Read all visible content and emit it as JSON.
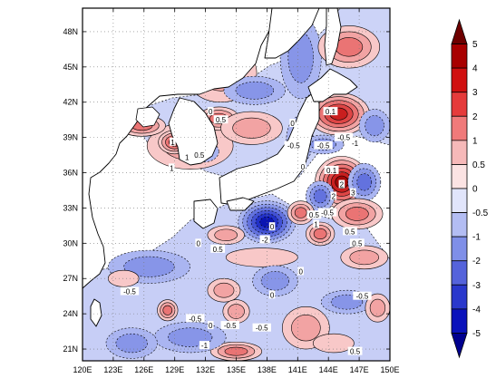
{
  "map": {
    "lon_labels": [
      "120E",
      "123E",
      "126E",
      "129E",
      "132E",
      "135E",
      "138E",
      "141E",
      "144E",
      "147E",
      "150E"
    ],
    "lat_labels": [
      "21N",
      "24N",
      "27N",
      "30N",
      "33N",
      "36N",
      "39N",
      "42N",
      "45N",
      "48N"
    ],
    "lon_range": [
      120,
      150
    ],
    "lat_range": [
      20,
      50
    ],
    "contour_labels": [
      {
        "text": "0",
        "lon": 132.5,
        "lat": 41.2
      },
      {
        "text": "0.5",
        "lon": 133.5,
        "lat": 40.5
      },
      {
        "text": "1",
        "lon": 128.8,
        "lat": 38.6
      },
      {
        "text": "0.5",
        "lon": 131.4,
        "lat": 37.5
      },
      {
        "text": "1",
        "lon": 130.2,
        "lat": 37.3
      },
      {
        "text": "1",
        "lon": 128.7,
        "lat": 36.4
      },
      {
        "text": "0",
        "lon": 140.5,
        "lat": 40.2
      },
      {
        "text": "-0.5",
        "lon": 140.6,
        "lat": 38.3
      },
      {
        "text": "0",
        "lon": 141.5,
        "lat": 36.5
      },
      {
        "text": "-0.5",
        "lon": 143.5,
        "lat": 38.3
      },
      {
        "text": "-0.5",
        "lon": 145.5,
        "lat": 39.0
      },
      {
        "text": "-1",
        "lon": 146.6,
        "lat": 38.5
      },
      {
        "text": "0.1",
        "lon": 144.2,
        "lat": 41.2
      },
      {
        "text": "0.1",
        "lon": 144.3,
        "lat": 36.2
      },
      {
        "text": "2",
        "lon": 145.3,
        "lat": 35.0
      },
      {
        "text": "3",
        "lon": 146.4,
        "lat": 34.3
      },
      {
        "text": "2",
        "lon": 144.5,
        "lat": 34.0
      },
      {
        "text": "-0.5",
        "lon": 143.9,
        "lat": 32.6
      },
      {
        "text": "1",
        "lon": 142.8,
        "lat": 31.6
      },
      {
        "text": "0.5",
        "lon": 142.6,
        "lat": 32.4
      },
      {
        "text": "0.5",
        "lon": 146.1,
        "lat": 31.0
      },
      {
        "text": "0.5",
        "lon": 146.8,
        "lat": 30.0
      },
      {
        "text": "-2",
        "lon": 137.8,
        "lat": 30.3
      },
      {
        "text": "0",
        "lon": 138.5,
        "lat": 31.4
      },
      {
        "text": "0.5",
        "lon": 133.2,
        "lat": 29.5
      },
      {
        "text": "0",
        "lon": 131.3,
        "lat": 30.0
      },
      {
        "text": "0",
        "lon": 141.3,
        "lat": 27.6
      },
      {
        "text": "-0.5",
        "lon": 124.6,
        "lat": 25.9
      },
      {
        "text": "-0.5",
        "lon": 131.0,
        "lat": 23.6
      },
      {
        "text": "0",
        "lon": 132.5,
        "lat": 23.0
      },
      {
        "text": "-0.5",
        "lon": 134.4,
        "lat": 23.0
      },
      {
        "text": "-0.5",
        "lon": 137.5,
        "lat": 22.8
      },
      {
        "text": "-1",
        "lon": 131.9,
        "lat": 21.3
      },
      {
        "text": "-0.5",
        "lon": 147.3,
        "lat": 25.5
      },
      {
        "text": "0",
        "lon": 138.5,
        "lat": 25.6
      },
      {
        "text": "0.5",
        "lon": 146.6,
        "lat": 20.8
      }
    ]
  },
  "colorbar": {
    "labels": [
      "5",
      "4",
      "3",
      "2",
      "1",
      "0.5",
      "0",
      "-0.5",
      "-1",
      "-2",
      "-3",
      "-4",
      "-5"
    ],
    "colors": [
      "#6e0000",
      "#a80000",
      "#d01010",
      "#e53b3b",
      "#f07a7a",
      "#f6b9b9",
      "#fbe3e3",
      "#e1e5fb",
      "#b3bdf3",
      "#7f8fe8",
      "#5563db",
      "#2a38cc",
      "#0a12bb",
      "#00008f"
    ]
  },
  "features": [
    {
      "kind": "pos",
      "lon": 130.5,
      "lat": 38.3,
      "rx": 4.2,
      "ry": 2.0,
      "level": 2
    },
    {
      "kind": "pos",
      "lon": 129.0,
      "lat": 38.6,
      "rx": 1.6,
      "ry": 1.0,
      "level": 4
    },
    {
      "kind": "pos",
      "lon": 133.3,
      "lat": 40.6,
      "rx": 2.0,
      "ry": 1.0,
      "level": 3
    },
    {
      "kind": "neg",
      "lon": 131.8,
      "lat": 37.8,
      "rx": 1.5,
      "ry": 0.9,
      "level": 2
    },
    {
      "kind": "pos",
      "lon": 125.8,
      "lat": 40.0,
      "rx": 2.3,
      "ry": 0.9,
      "level": 3
    },
    {
      "kind": "pos",
      "lon": 133.5,
      "lat": 44.5,
      "rx": 3.5,
      "ry": 2.5,
      "level": 2
    },
    {
      "kind": "neg",
      "lon": 136.8,
      "lat": 43.0,
      "rx": 3.0,
      "ry": 1.2,
      "level": 2
    },
    {
      "kind": "pos",
      "lon": 136.5,
      "lat": 39.8,
      "rx": 3.0,
      "ry": 1.4,
      "level": 2
    },
    {
      "kind": "neg",
      "lon": 141.3,
      "lat": 45.8,
      "rx": 2.0,
      "ry": 3.5,
      "level": 2
    },
    {
      "kind": "pos",
      "lon": 146.0,
      "lat": 46.7,
      "rx": 3.0,
      "ry": 1.8,
      "level": 3
    },
    {
      "kind": "pos",
      "lon": 145.0,
      "lat": 41.0,
      "rx": 3.0,
      "ry": 1.8,
      "level": 5
    },
    {
      "kind": "neg",
      "lon": 148.5,
      "lat": 40.0,
      "rx": 1.5,
      "ry": 1.4,
      "level": 2
    },
    {
      "kind": "neg",
      "lon": 141.2,
      "lat": 38.8,
      "rx": 1.3,
      "ry": 2.0,
      "level": 2
    },
    {
      "kind": "neg",
      "lon": 143.5,
      "lat": 38.4,
      "rx": 2.0,
      "ry": 0.8,
      "level": 2
    },
    {
      "kind": "pos",
      "lon": 145.3,
      "lat": 35.2,
      "rx": 2.6,
      "ry": 2.2,
      "level": 6
    },
    {
      "kind": "neg",
      "lon": 147.5,
      "lat": 35.2,
      "rx": 1.6,
      "ry": 1.6,
      "level": 3
    },
    {
      "kind": "neg",
      "lon": 143.2,
      "lat": 34.0,
      "rx": 1.4,
      "ry": 1.3,
      "level": 3
    },
    {
      "kind": "pos",
      "lon": 146.8,
      "lat": 32.5,
      "rx": 2.5,
      "ry": 1.3,
      "level": 3
    },
    {
      "kind": "neg",
      "lon": 138.0,
      "lat": 31.8,
      "rx": 2.8,
      "ry": 1.8,
      "level": 6
    },
    {
      "kind": "pos",
      "lon": 141.3,
      "lat": 32.6,
      "rx": 1.3,
      "ry": 1.0,
      "level": 3
    },
    {
      "kind": "pos",
      "lon": 143.2,
      "lat": 30.8,
      "rx": 1.4,
      "ry": 1.0,
      "level": 3
    },
    {
      "kind": "pos",
      "lon": 134.0,
      "lat": 30.7,
      "rx": 1.8,
      "ry": 0.8,
      "level": 2
    },
    {
      "kind": "pos",
      "lon": 147.5,
      "lat": 28.8,
      "rx": 2.3,
      "ry": 1.0,
      "level": 2
    },
    {
      "kind": "pos",
      "lon": 137.5,
      "lat": 28.8,
      "rx": 3.5,
      "ry": 0.8,
      "level": 1
    },
    {
      "kind": "neg",
      "lon": 126.5,
      "lat": 28.0,
      "rx": 4.0,
      "ry": 1.4,
      "level": 2
    },
    {
      "kind": "pos",
      "lon": 124.0,
      "lat": 27.0,
      "rx": 1.5,
      "ry": 0.7,
      "level": 1
    },
    {
      "kind": "pos",
      "lon": 133.8,
      "lat": 26.0,
      "rx": 1.6,
      "ry": 1.0,
      "level": 2
    },
    {
      "kind": "neg",
      "lon": 138.8,
      "lat": 26.8,
      "rx": 2.2,
      "ry": 1.3,
      "level": 2
    },
    {
      "kind": "pos",
      "lon": 128.3,
      "lat": 24.3,
      "rx": 1.0,
      "ry": 0.9,
      "level": 3
    },
    {
      "kind": "pos",
      "lon": 135.0,
      "lat": 24.2,
      "rx": 1.3,
      "ry": 1.0,
      "level": 2
    },
    {
      "kind": "pos",
      "lon": 141.8,
      "lat": 22.8,
      "rx": 2.3,
      "ry": 1.8,
      "level": 2
    },
    {
      "kind": "neg",
      "lon": 145.8,
      "lat": 25.0,
      "rx": 2.5,
      "ry": 1.0,
      "level": 2
    },
    {
      "kind": "pos",
      "lon": 148.8,
      "lat": 24.5,
      "rx": 1.2,
      "ry": 1.2,
      "level": 2
    },
    {
      "kind": "pos",
      "lon": 135.0,
      "lat": 20.8,
      "rx": 2.5,
      "ry": 0.8,
      "level": 3
    },
    {
      "kind": "neg",
      "lon": 130.5,
      "lat": 22.0,
      "rx": 3.5,
      "ry": 1.3,
      "level": 2
    },
    {
      "kind": "pos",
      "lon": 144.5,
      "lat": 21.5,
      "rx": 2.0,
      "ry": 0.8,
      "level": 1
    },
    {
      "kind": "neg",
      "lon": 124.8,
      "lat": 21.5,
      "rx": 2.5,
      "ry": 1.3,
      "level": 2
    }
  ]
}
